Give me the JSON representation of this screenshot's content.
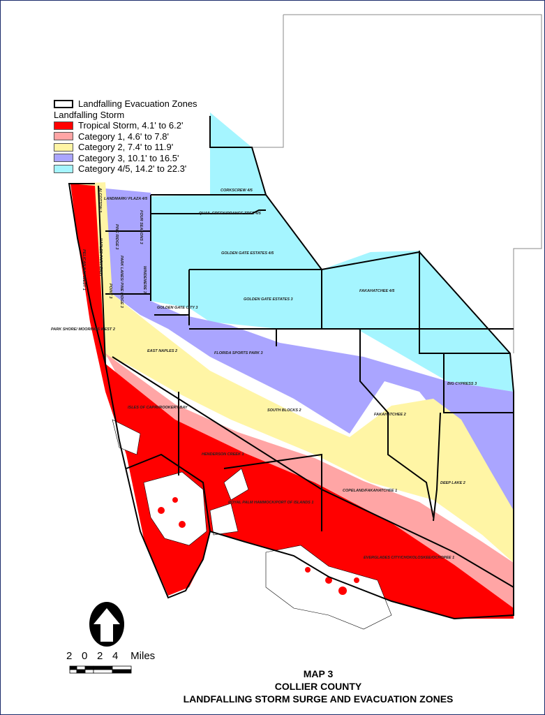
{
  "legend": {
    "zones_label": "Landfalling Evacuation Zones",
    "heading": "Landfalling Storm",
    "items": [
      {
        "label": "Tropical Storm, 4.1' to 6.2'",
        "color": "#ff0000"
      },
      {
        "label": "Category 1, 4.6' to 7.8'",
        "color": "#ffa5a5"
      },
      {
        "label": "Category 2, 7.4' to 11.9'",
        "color": "#fff5a5"
      },
      {
        "label": "Category 3, 10.1' to 16.5'",
        "color": "#aaa5ff"
      },
      {
        "label": "Category 4/5, 14.2' to 22.3'",
        "color": "#a5f5ff"
      }
    ]
  },
  "zones": [
    "CORKSCREW 4/5",
    "QUAIL CREEK/ORANGE TREE 4/5",
    "GOLDEN GATE ESTATES 4/5",
    "GOLDEN GATE ESTATES 3",
    "FAKAHATCHEE 4/5",
    "GOLDEN GATE CITY 3",
    "FOUR SEASONS 3",
    "WINDEMERE 3",
    "EAST NAPLES 2",
    "FLORIDA SPORTS PARK 3",
    "SOUTH BLOCKS 2",
    "BIG CYPRESS 3",
    "FAKAHATCHEE 2",
    "DEEP LAKE 2",
    "HENDERSON CREEK 1",
    "COPELAND/FAKAHATCHEE 1",
    "ROYAL PALM HAMMOCK/PORT OF ISLANDS 1",
    "EVERGLADES CITY/CHOKOLOSKEE/OCHOPEE 1",
    "ISLES OF CAPRI/ROOKERY BAY",
    "PELICAN BAY WEST 1",
    "PARK SHORE/ MOORINGS WEST 2",
    "ALCOTTON 2",
    "LANDMARK/ PLAZA 4/5",
    "PINE RIDGE 3",
    "PARK LANES/ PINE RIDGE 3",
    "NAPLES PARK EAST",
    "POINT 3"
  ],
  "north_arrow": "north-arrow-icon",
  "scale": {
    "ticks": [
      "2",
      "0",
      "2",
      "4"
    ],
    "unit": "Miles"
  },
  "title": {
    "line1": "MAP 3",
    "line2": "COLLIER COUNTY",
    "line3": "LANDFALLING STORM SURGE AND EVACUATION ZONES"
  }
}
